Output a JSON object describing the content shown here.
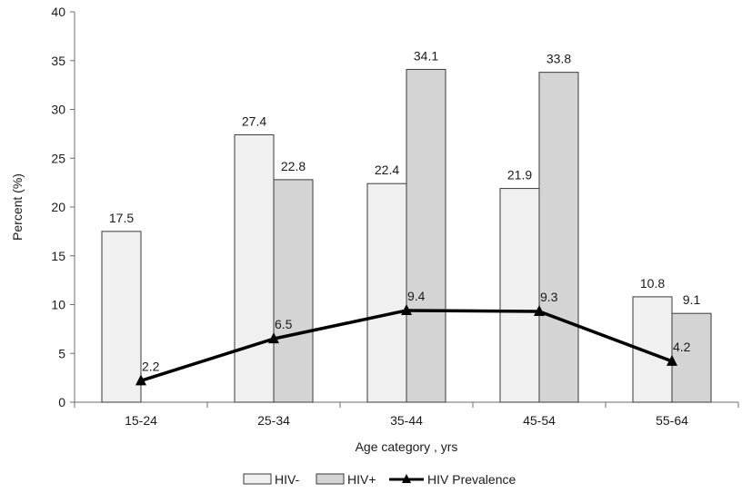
{
  "chart_data": {
    "type": "bar",
    "categories": [
      "15-24",
      "25-34",
      "35-44",
      "45-54",
      "55-64"
    ],
    "series": [
      {
        "name": "HIV-",
        "type": "bar",
        "values": [
          17.5,
          27.4,
          22.4,
          21.9,
          10.8
        ],
        "color": "#f0f0f0"
      },
      {
        "name": "HIV+",
        "type": "bar",
        "values": [
          null,
          22.8,
          34.1,
          33.8,
          9.1
        ],
        "color": "#d4d4d4"
      },
      {
        "name": "HIV  Prevalence",
        "type": "line",
        "values": [
          2.2,
          6.5,
          9.4,
          9.3,
          4.2
        ],
        "color": "#000000",
        "marker": "triangle"
      }
    ],
    "data_labels": {
      "HIV-": [
        "17.5",
        "27.4",
        "22.4",
        "21.9",
        "10.8"
      ],
      "HIV+": [
        "",
        "22.8",
        "34.1",
        "33.8",
        "9.1"
      ],
      "HIV  Prevalence": [
        "2.2",
        "6.5",
        "9.4",
        "9.3",
        "4.2"
      ]
    },
    "xlabel": "Age category , yrs",
    "ylabel": "Percent (%)",
    "ylim": [
      0,
      40
    ],
    "yticks": [
      "0",
      "5",
      "10",
      "15",
      "20",
      "25",
      "30",
      "35",
      "40"
    ],
    "grid": false,
    "legend_position": "bottom"
  }
}
